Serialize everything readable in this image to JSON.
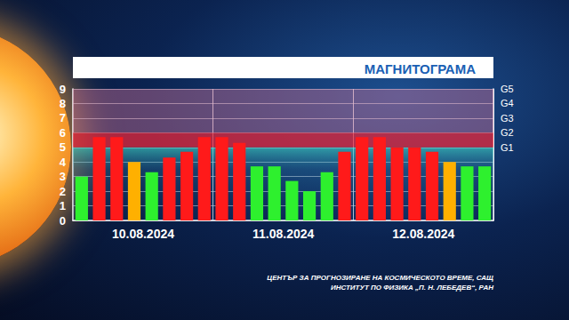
{
  "chart_data": {
    "type": "bar",
    "title": "МАГНИТОГРАМА",
    "categories": [
      null,
      null,
      null,
      "10.08.2024",
      null,
      null,
      null,
      null,
      null,
      null,
      null,
      "11.08.2024",
      null,
      null,
      null,
      null,
      null,
      null,
      null,
      "12.08.2024",
      null,
      null,
      null,
      null
    ],
    "values": [
      3.0,
      5.7,
      5.7,
      4.0,
      3.3,
      4.3,
      4.7,
      5.7,
      5.7,
      5.3,
      3.7,
      3.7,
      2.7,
      2.0,
      3.3,
      4.7,
      5.7,
      5.7,
      5.0,
      5.0,
      4.7,
      4.0,
      3.7,
      3.7
    ],
    "colors": [
      "#2ef02e",
      "#ff1a1a",
      "#ff1a1a",
      "#ffb000",
      "#2ef02e",
      "#ff1a1a",
      "#ff1a1a",
      "#ff1a1a",
      "#ff1a1a",
      "#ff1a1a",
      "#2ef02e",
      "#2ef02e",
      "#2ef02e",
      "#2ef02e",
      "#2ef02e",
      "#ff1a1a",
      "#ff1a1a",
      "#ff1a1a",
      "#ff1a1a",
      "#ff1a1a",
      "#ff1a1a",
      "#ffb000",
      "#2ef02e",
      "#2ef02e"
    ],
    "ylim": [
      0,
      9
    ],
    "yticks": [
      0,
      1,
      2,
      3,
      4,
      5,
      6,
      7,
      8,
      9
    ],
    "y2lim": [
      0,
      9
    ],
    "y2ticks": [
      {
        "value": 5,
        "label": "G1"
      },
      {
        "value": 6,
        "label": "G2"
      },
      {
        "value": 7,
        "label": "G3"
      },
      {
        "value": 8,
        "label": "G4"
      },
      {
        "value": 9,
        "label": "G5"
      }
    ],
    "grid": true,
    "source": [
      "ЦЕНТЪР ЗА ПРОГНОЗИРАНЕ НА КОСМИЧЕСКОТО ВРЕМЕ, САЩ",
      "ИНСТИТУТ ПО ФИЗИКА „П. Н. ЛЕБЕДЕВ“, РАН"
    ]
  }
}
